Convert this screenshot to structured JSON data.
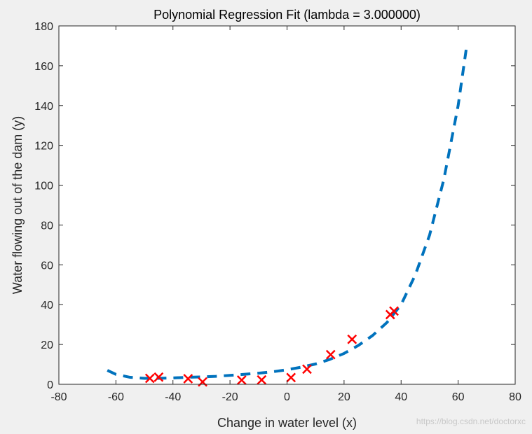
{
  "chart_data": {
    "type": "scatter",
    "title": "Polynomial Regression Fit (lambda = 3.000000)",
    "xlabel": "Change in water level (x)",
    "ylabel": "Water flowing out of the dam (y)",
    "xlim": [
      -80,
      80
    ],
    "ylim": [
      0,
      180
    ],
    "xticks": [
      -80,
      -60,
      -40,
      -20,
      0,
      20,
      40,
      60,
      80
    ],
    "yticks": [
      0,
      20,
      40,
      60,
      80,
      100,
      120,
      140,
      160,
      180
    ],
    "grid": false,
    "series": [
      {
        "marker": "x",
        "color": "#ff0000",
        "points": [
          {
            "x": -48.1,
            "y": 3.0
          },
          {
            "x": -45.0,
            "y": 3.6
          },
          {
            "x": -34.7,
            "y": 2.8
          },
          {
            "x": -29.6,
            "y": 1.2
          },
          {
            "x": -15.9,
            "y": 2.1
          },
          {
            "x": -8.9,
            "y": 2.2
          },
          {
            "x": 1.4,
            "y": 3.4
          },
          {
            "x": 7.0,
            "y": 7.6
          },
          {
            "x": 15.3,
            "y": 14.9
          },
          {
            "x": 22.8,
            "y": 22.6
          },
          {
            "x": 36.2,
            "y": 35.0
          },
          {
            "x": 37.5,
            "y": 36.8
          }
        ]
      },
      {
        "style": "dashed-line",
        "color": "#0072bd",
        "points": [
          {
            "x": -63.0,
            "y": 7.0
          },
          {
            "x": -60.0,
            "y": 5.0
          },
          {
            "x": -55.0,
            "y": 3.5
          },
          {
            "x": -50.0,
            "y": 3.0
          },
          {
            "x": -45.0,
            "y": 3.0
          },
          {
            "x": -40.0,
            "y": 3.2
          },
          {
            "x": -35.0,
            "y": 3.5
          },
          {
            "x": -30.0,
            "y": 3.7
          },
          {
            "x": -25.0,
            "y": 4.0
          },
          {
            "x": -20.0,
            "y": 4.5
          },
          {
            "x": -15.0,
            "y": 5.0
          },
          {
            "x": -10.0,
            "y": 5.6
          },
          {
            "x": -5.0,
            "y": 6.3
          },
          {
            "x": 0.0,
            "y": 7.3
          },
          {
            "x": 5.0,
            "y": 8.6
          },
          {
            "x": 10.0,
            "y": 10.2
          },
          {
            "x": 15.0,
            "y": 12.5
          },
          {
            "x": 20.0,
            "y": 15.5
          },
          {
            "x": 25.0,
            "y": 19.5
          },
          {
            "x": 30.0,
            "y": 24.5
          },
          {
            "x": 35.0,
            "y": 31.0
          },
          {
            "x": 40.0,
            "y": 40.0
          },
          {
            "x": 45.0,
            "y": 55.0
          },
          {
            "x": 50.0,
            "y": 75.0
          },
          {
            "x": 55.0,
            "y": 103.0
          },
          {
            "x": 60.0,
            "y": 140.0
          },
          {
            "x": 62.8,
            "y": 168.0
          }
        ]
      }
    ]
  },
  "watermark": "https://blog.csdn.net/doctorxc"
}
